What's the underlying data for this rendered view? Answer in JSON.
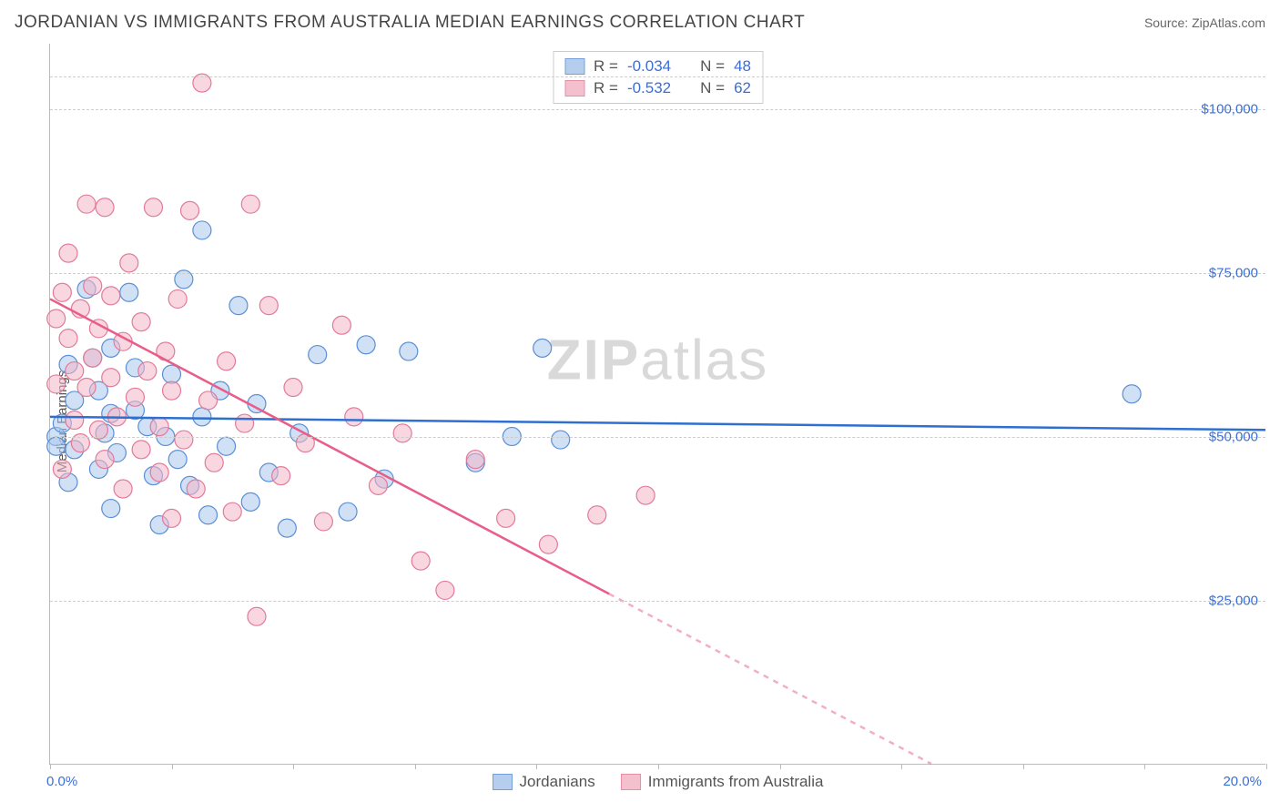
{
  "title": "JORDANIAN VS IMMIGRANTS FROM AUSTRALIA MEDIAN EARNINGS CORRELATION CHART",
  "source": "Source: ZipAtlas.com",
  "y_axis_label": "Median Earnings",
  "watermark": {
    "bold": "ZIP",
    "light": "atlas"
  },
  "chart": {
    "type": "scatter",
    "xlim": [
      0,
      20
    ],
    "ylim": [
      0,
      110000
    ],
    "x_ticks": [
      0,
      2,
      4,
      6,
      8,
      10,
      12,
      14,
      16,
      18,
      20
    ],
    "x_tick_labels": {
      "0": "0.0%",
      "20": "20.0%"
    },
    "y_gridlines": [
      25000,
      50000,
      75000,
      100000,
      105000
    ],
    "y_tick_labels": {
      "25000": "$25,000",
      "50000": "$50,000",
      "75000": "$75,000",
      "100000": "$100,000"
    },
    "grid_color": "#cccccc",
    "axis_color": "#bbbbbb",
    "background_color": "#ffffff",
    "point_radius": 10,
    "line_width": 2.5,
    "series": [
      {
        "name": "Jordanians",
        "fill": "#a9c6ec",
        "fill_opacity": 0.55,
        "stroke": "#5a8fd6",
        "line_color": "#2f6fd0",
        "R": "-0.034",
        "N": "48",
        "trend": {
          "x1": 0,
          "y1": 53000,
          "x2": 20,
          "y2": 51000,
          "dash_from_x": null
        },
        "points": [
          [
            0.1,
            50000
          ],
          [
            0.1,
            48500
          ],
          [
            0.2,
            52000
          ],
          [
            0.3,
            61000
          ],
          [
            0.3,
            43000
          ],
          [
            0.4,
            55500
          ],
          [
            0.4,
            48000
          ],
          [
            0.6,
            72500
          ],
          [
            0.7,
            62000
          ],
          [
            0.8,
            57000
          ],
          [
            0.8,
            45000
          ],
          [
            0.9,
            50500
          ],
          [
            1.0,
            63500
          ],
          [
            1.0,
            53500
          ],
          [
            1.0,
            39000
          ],
          [
            1.1,
            47500
          ],
          [
            1.3,
            72000
          ],
          [
            1.4,
            54000
          ],
          [
            1.4,
            60500
          ],
          [
            1.6,
            51500
          ],
          [
            1.7,
            44000
          ],
          [
            1.8,
            36500
          ],
          [
            1.9,
            50000
          ],
          [
            2.0,
            59500
          ],
          [
            2.1,
            46500
          ],
          [
            2.2,
            74000
          ],
          [
            2.3,
            42500
          ],
          [
            2.5,
            81500
          ],
          [
            2.5,
            53000
          ],
          [
            2.6,
            38000
          ],
          [
            2.8,
            57000
          ],
          [
            2.9,
            48500
          ],
          [
            3.1,
            70000
          ],
          [
            3.3,
            40000
          ],
          [
            3.4,
            55000
          ],
          [
            3.6,
            44500
          ],
          [
            3.9,
            36000
          ],
          [
            4.1,
            50500
          ],
          [
            4.4,
            62500
          ],
          [
            4.9,
            38500
          ],
          [
            5.2,
            64000
          ],
          [
            5.5,
            43500
          ],
          [
            5.9,
            63000
          ],
          [
            7.0,
            46000
          ],
          [
            7.6,
            50000
          ],
          [
            8.1,
            63500
          ],
          [
            8.4,
            49500
          ],
          [
            17.8,
            56500
          ]
        ]
      },
      {
        "name": "Immigrants from Australia",
        "fill": "#f4b6c6",
        "fill_opacity": 0.55,
        "stroke": "#e27a9a",
        "line_color": "#e85d8a",
        "R": "-0.532",
        "N": "62",
        "trend": {
          "x1": 0,
          "y1": 71000,
          "x2": 14.5,
          "y2": 0,
          "dash_from_x": 9.2
        },
        "points": [
          [
            0.1,
            68000
          ],
          [
            0.1,
            58000
          ],
          [
            0.2,
            72000
          ],
          [
            0.2,
            45000
          ],
          [
            0.3,
            65000
          ],
          [
            0.3,
            78000
          ],
          [
            0.4,
            52500
          ],
          [
            0.4,
            60000
          ],
          [
            0.5,
            69500
          ],
          [
            0.5,
            49000
          ],
          [
            0.6,
            57500
          ],
          [
            0.6,
            85500
          ],
          [
            0.7,
            73000
          ],
          [
            0.7,
            62000
          ],
          [
            0.8,
            51000
          ],
          [
            0.8,
            66500
          ],
          [
            0.9,
            85000
          ],
          [
            0.9,
            46500
          ],
          [
            1.0,
            59000
          ],
          [
            1.0,
            71500
          ],
          [
            1.1,
            53000
          ],
          [
            1.2,
            64500
          ],
          [
            1.2,
            42000
          ],
          [
            1.3,
            76500
          ],
          [
            1.4,
            56000
          ],
          [
            1.5,
            48000
          ],
          [
            1.5,
            67500
          ],
          [
            1.6,
            60000
          ],
          [
            1.7,
            85000
          ],
          [
            1.8,
            51500
          ],
          [
            1.8,
            44500
          ],
          [
            1.9,
            63000
          ],
          [
            2.0,
            37500
          ],
          [
            2.0,
            57000
          ],
          [
            2.1,
            71000
          ],
          [
            2.2,
            49500
          ],
          [
            2.3,
            84500
          ],
          [
            2.4,
            42000
          ],
          [
            2.5,
            104000
          ],
          [
            2.6,
            55500
          ],
          [
            2.7,
            46000
          ],
          [
            2.9,
            61500
          ],
          [
            3.0,
            38500
          ],
          [
            3.2,
            52000
          ],
          [
            3.3,
            85500
          ],
          [
            3.4,
            22500
          ],
          [
            3.6,
            70000
          ],
          [
            3.8,
            44000
          ],
          [
            4.0,
            57500
          ],
          [
            4.2,
            49000
          ],
          [
            4.5,
            37000
          ],
          [
            4.8,
            67000
          ],
          [
            5.0,
            53000
          ],
          [
            5.4,
            42500
          ],
          [
            5.8,
            50500
          ],
          [
            6.1,
            31000
          ],
          [
            6.5,
            26500
          ],
          [
            7.0,
            46500
          ],
          [
            7.5,
            37500
          ],
          [
            8.2,
            33500
          ],
          [
            9.0,
            38000
          ],
          [
            9.8,
            41000
          ]
        ]
      }
    ]
  },
  "legend_top_labels": {
    "R": "R =",
    "N": "N ="
  },
  "colors": {
    "value_text": "#3a6fd8",
    "label_text": "#555555"
  }
}
